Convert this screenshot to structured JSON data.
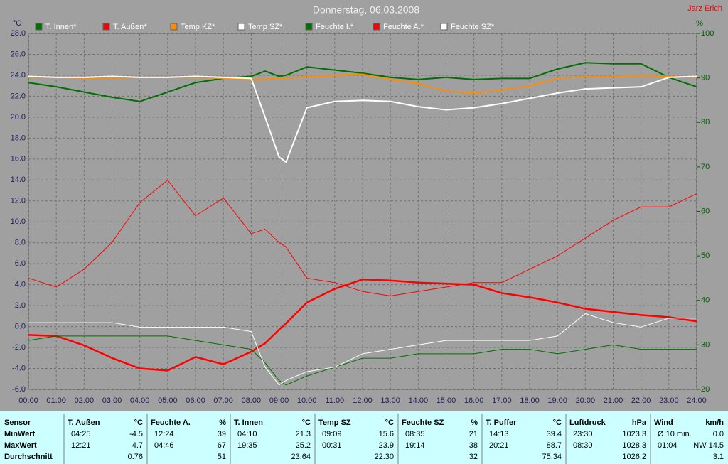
{
  "chart_data": {
    "type": "line",
    "title": "Donnerstag, 06.03.2008",
    "author": "Jarz Erich",
    "ylabel": "°C",
    "y2label": "%",
    "x": [
      0,
      1,
      2,
      3,
      4,
      5,
      6,
      7,
      8,
      8.5,
      9,
      9.25,
      10,
      11,
      12,
      13,
      14,
      15,
      16,
      17,
      18,
      19,
      20,
      21,
      22,
      23,
      24
    ],
    "xlim": [
      0,
      24
    ],
    "xticks": [
      {
        "value": 0,
        "label": "00:00"
      },
      {
        "value": 1,
        "label": "01:00"
      },
      {
        "value": 2,
        "label": "02:00"
      },
      {
        "value": 3,
        "label": "03:00"
      },
      {
        "value": 4,
        "label": "04:00"
      },
      {
        "value": 5,
        "label": "05:00"
      },
      {
        "value": 6,
        "label": "06:00"
      },
      {
        "value": 7,
        "label": "07:00"
      },
      {
        "value": 8,
        "label": "08:00"
      },
      {
        "value": 9,
        "label": "09:00"
      },
      {
        "value": 10,
        "label": "10:00"
      },
      {
        "value": 11,
        "label": "11:00"
      },
      {
        "value": 12,
        "label": "12:00"
      },
      {
        "value": 13,
        "label": "13:00"
      },
      {
        "value": 14,
        "label": "14:00"
      },
      {
        "value": 15,
        "label": "15:00"
      },
      {
        "value": 16,
        "label": "16:00"
      },
      {
        "value": 17,
        "label": "17:00"
      },
      {
        "value": 18,
        "label": "18:00"
      },
      {
        "value": 19,
        "label": "19:00"
      },
      {
        "value": 20,
        "label": "20:00"
      },
      {
        "value": 21,
        "label": "21:00"
      },
      {
        "value": 22,
        "label": "22:00"
      },
      {
        "value": 23,
        "label": "23:00"
      },
      {
        "value": 24,
        "label": "24:00"
      }
    ],
    "ylim": [
      -6,
      28
    ],
    "yticks": [
      {
        "value": -6,
        "label": "-6.0"
      },
      {
        "value": -4,
        "label": "-4.0"
      },
      {
        "value": -2,
        "label": "-2.0"
      },
      {
        "value": 0,
        "label": "0.0"
      },
      {
        "value": 2,
        "label": "2.0"
      },
      {
        "value": 4,
        "label": "4.0"
      },
      {
        "value": 6,
        "label": "6.0"
      },
      {
        "value": 8,
        "label": "8.0"
      },
      {
        "value": 10,
        "label": "10.0"
      },
      {
        "value": 12,
        "label": "12.0"
      },
      {
        "value": 14,
        "label": "14.0"
      },
      {
        "value": 16,
        "label": "16.0"
      },
      {
        "value": 18,
        "label": "18.0"
      },
      {
        "value": 20,
        "label": "20.0"
      },
      {
        "value": 22,
        "label": "22.0"
      },
      {
        "value": 24,
        "label": "24.0"
      },
      {
        "value": 26,
        "label": "26.0"
      },
      {
        "value": 28,
        "label": "28.0"
      }
    ],
    "y2lim": [
      20,
      100
    ],
    "y2ticks": [
      20,
      30,
      40,
      50,
      60,
      70,
      80,
      90,
      100
    ],
    "grid": true,
    "series": [
      {
        "name": "T. Innen*",
        "color": "#007000",
        "line_width": 2,
        "values": [
          23.3,
          22.9,
          22.4,
          21.9,
          21.5,
          22.4,
          23.3,
          23.7,
          23.9,
          24.4,
          23.9,
          24.0,
          24.8,
          24.5,
          24.2,
          23.8,
          23.6,
          23.8,
          23.6,
          23.7,
          23.7,
          24.6,
          25.2,
          25.1,
          25.1,
          23.8,
          22.9
        ]
      },
      {
        "name": "T. Außen*",
        "color": "#ff0000",
        "line_width": 2.5,
        "values": [
          -0.8,
          -0.9,
          -1.8,
          -3.0,
          -4.0,
          -4.2,
          -2.9,
          -3.6,
          -2.4,
          -1.6,
          -0.3,
          0.3,
          2.3,
          3.6,
          4.5,
          4.4,
          4.2,
          4.1,
          4.0,
          3.2,
          2.8,
          2.3,
          1.7,
          1.4,
          1.1,
          0.9,
          0.5
        ]
      },
      {
        "name": "Temp KZ*",
        "color": "#ff8c00",
        "line_width": 2,
        "values": [
          23.8,
          23.8,
          23.7,
          23.7,
          23.8,
          23.8,
          23.8,
          23.7,
          23.6,
          23.6,
          23.7,
          23.7,
          23.9,
          24.0,
          24.1,
          23.6,
          23.2,
          22.5,
          22.3,
          22.6,
          23.0,
          23.7,
          23.9,
          23.9,
          24.0,
          23.9,
          23.8
        ]
      },
      {
        "name": "Temp SZ*",
        "color": "#ffffff",
        "line_width": 2,
        "values": [
          23.9,
          23.8,
          23.8,
          23.9,
          23.8,
          23.8,
          23.9,
          23.8,
          23.7,
          20.0,
          16.2,
          15.7,
          20.9,
          21.5,
          21.6,
          21.5,
          21.0,
          20.7,
          20.9,
          21.3,
          21.8,
          22.3,
          22.7,
          22.8,
          22.9,
          23.8,
          23.9
        ]
      },
      {
        "name": "Feuchte I.*",
        "color": "#007000",
        "line_width": 1,
        "axis": "y2",
        "values": [
          31,
          32,
          32,
          32,
          32,
          32,
          31,
          30,
          29,
          26,
          22,
          21,
          23,
          25,
          27,
          27,
          28,
          28,
          28,
          29,
          29,
          28,
          29,
          30,
          29,
          29,
          29
        ]
      },
      {
        "name": "Feuchte A.*",
        "color": "#ff0000",
        "line_width": 1,
        "axis": "y2",
        "values": [
          45,
          43,
          47,
          53,
          62,
          67,
          59,
          63,
          55,
          56,
          53,
          52,
          45,
          44,
          42,
          41,
          42,
          43,
          44,
          44,
          47,
          50,
          54,
          58,
          61,
          61,
          64
        ]
      },
      {
        "name": "Feuchte SZ*",
        "color": "#ffffff",
        "line_width": 1,
        "axis": "y2",
        "values": [
          35,
          35,
          35,
          35,
          34,
          34,
          34,
          34,
          33,
          25,
          21,
          22,
          24,
          25,
          28,
          29,
          30,
          31,
          31,
          31,
          31,
          32,
          37,
          35,
          34,
          36,
          36
        ]
      }
    ]
  },
  "table": {
    "row_labels": [
      "Sensor",
      "MinWert",
      "MaxWert",
      "Durchschnitt"
    ],
    "groups": [
      {
        "name": "T. Außen",
        "unit": "°C",
        "rows": [
          [
            "04:25",
            "-4.5"
          ],
          [
            "12:21",
            "4.7"
          ],
          [
            "0.76"
          ]
        ]
      },
      {
        "name": "Feuchte A.",
        "unit": "%",
        "rows": [
          [
            "12:24",
            "39"
          ],
          [
            "04:46",
            "67"
          ],
          [
            "51"
          ]
        ]
      },
      {
        "name": "T. Innen",
        "unit": "°C",
        "rows": [
          [
            "04:10",
            "21.3"
          ],
          [
            "19:35",
            "25.2"
          ],
          [
            "23.64"
          ]
        ]
      },
      {
        "name": "Temp SZ",
        "unit": "°C",
        "rows": [
          [
            "09:09",
            "15.6"
          ],
          [
            "00:31",
            "23.9"
          ],
          [
            "22.30"
          ]
        ]
      },
      {
        "name": "Feuchte SZ",
        "unit": "%",
        "rows": [
          [
            "08:35",
            "21"
          ],
          [
            "19:14",
            "38"
          ],
          [
            "32"
          ]
        ]
      },
      {
        "name": "T. Puffer",
        "unit": "°C",
        "rows": [
          [
            "14:13",
            "39.4"
          ],
          [
            "20:21",
            "88.7"
          ],
          [
            "75.34"
          ]
        ]
      },
      {
        "name": "Luftdruck",
        "unit": "hPa",
        "rows": [
          [
            "23:30",
            "1023.3"
          ],
          [
            "08:30",
            "1028.3"
          ],
          [
            "1026.2"
          ]
        ]
      },
      {
        "name": "Wind",
        "unit": "km/h",
        "rows": [
          [
            "Ø 10 min.",
            "0.0"
          ],
          [
            "01:04",
            "NW 14.5"
          ],
          [
            "3.1"
          ]
        ]
      }
    ]
  }
}
